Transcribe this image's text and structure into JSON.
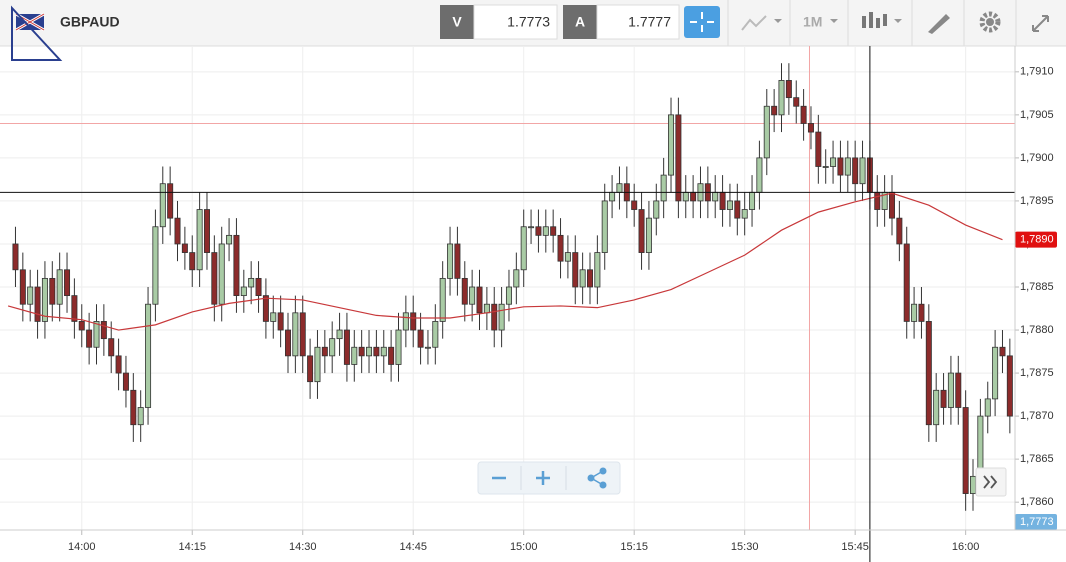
{
  "header": {
    "symbol": "GBPAUD",
    "bid_label": "V",
    "bid": "1.7773",
    "ask_label": "A",
    "ask": "1.7777",
    "timeframe": "1M"
  },
  "chart_data": {
    "type": "candlestick",
    "x": [
      -9,
      -8,
      -7,
      -6,
      -5,
      -4,
      -3,
      -2,
      -1,
      0,
      1,
      2,
      3,
      4,
      5,
      6,
      7,
      8,
      9,
      10,
      11,
      12,
      13,
      14,
      15,
      16,
      17,
      18,
      19,
      20,
      21,
      22,
      23,
      24,
      25,
      26,
      27,
      28,
      29,
      30,
      31,
      32,
      33,
      34,
      35,
      36,
      37,
      38,
      39,
      40,
      41,
      42,
      43,
      44,
      45,
      46,
      47,
      48,
      49,
      50,
      51,
      52,
      53,
      54,
      55,
      56,
      57,
      58,
      59,
      60,
      61,
      62,
      63,
      64,
      65,
      66,
      67,
      68,
      69,
      70,
      71,
      72,
      73,
      74,
      75,
      76,
      77,
      78,
      79,
      80,
      81,
      82,
      83,
      84,
      85,
      86,
      87,
      88,
      89,
      90,
      91,
      92,
      93,
      94,
      95,
      96,
      97,
      98,
      99,
      100,
      101,
      102,
      103,
      104,
      105,
      106,
      107,
      108,
      109,
      110,
      111,
      112,
      113,
      114,
      115,
      116,
      117,
      118,
      119,
      120,
      121,
      122,
      123,
      124,
      125,
      126
    ],
    "open": [
      1.789,
      1.7887,
      1.7883,
      1.7885,
      1.7881,
      1.7886,
      1.7883,
      1.7887,
      1.7884,
      1.7881,
      1.788,
      1.7878,
      1.7881,
      1.7879,
      1.7877,
      1.7875,
      1.7873,
      1.7869,
      1.7871,
      1.7883,
      1.7892,
      1.7897,
      1.7893,
      1.789,
      1.7889,
      1.7887,
      1.7894,
      1.7889,
      1.7883,
      1.789,
      1.7891,
      1.7884,
      1.7885,
      1.7886,
      1.7884,
      1.7881,
      1.7882,
      1.788,
      1.7877,
      1.7882,
      1.7877,
      1.7874,
      1.7878,
      1.7877,
      1.7879,
      1.788,
      1.7876,
      1.7878,
      1.7877,
      1.7878,
      1.7877,
      1.7878,
      1.7876,
      1.788,
      1.7882,
      1.788,
      1.7878,
      1.7878,
      1.7881,
      1.7886,
      1.789,
      1.7886,
      1.7883,
      1.7885,
      1.7882,
      1.7883,
      1.788,
      1.7883,
      1.7885,
      1.7887,
      1.7892,
      1.7892,
      1.7891,
      1.7892,
      1.7891,
      1.7888,
      1.7889,
      1.7885,
      1.7887,
      1.7885,
      1.7889,
      1.7895,
      1.7896,
      1.7897,
      1.7895,
      1.7894,
      1.7889,
      1.7893,
      1.7895,
      1.7898,
      1.7905,
      1.7895,
      1.7896,
      1.7895,
      1.7897,
      1.7895,
      1.7896,
      1.7894,
      1.7895,
      1.7893,
      1.7894,
      1.7896,
      1.79,
      1.7906,
      1.7905,
      1.7909,
      1.7907,
      1.7906,
      1.7904,
      1.7903,
      1.7899,
      1.7899,
      1.79,
      1.7898,
      1.79,
      1.7897,
      1.79,
      1.7896,
      1.7894,
      1.7896,
      1.7893,
      1.789,
      1.7881,
      1.7883,
      1.7881,
      1.7869,
      1.7873,
      1.7871,
      1.7875,
      1.7871,
      1.7861,
      1.7863,
      1.787,
      1.7872,
      1.7878,
      1.7877
    ],
    "high": [
      1.7892,
      1.7889,
      1.7887,
      1.7887,
      1.7888,
      1.7888,
      1.7889,
      1.7889,
      1.7886,
      1.7883,
      1.7882,
      1.7883,
      1.7883,
      1.7881,
      1.7879,
      1.7877,
      1.7875,
      1.7873,
      1.7885,
      1.7894,
      1.7899,
      1.7899,
      1.7895,
      1.7892,
      1.7891,
      1.7896,
      1.7896,
      1.7891,
      1.7892,
      1.7893,
      1.7893,
      1.7887,
      1.7888,
      1.7888,
      1.7886,
      1.7884,
      1.7884,
      1.7882,
      1.7884,
      1.7884,
      1.7879,
      1.788,
      1.788,
      1.7881,
      1.7882,
      1.7882,
      1.788,
      1.788,
      1.788,
      1.788,
      1.788,
      1.788,
      1.7882,
      1.7884,
      1.7884,
      1.7882,
      1.788,
      1.7883,
      1.7888,
      1.7892,
      1.7892,
      1.7888,
      1.7887,
      1.7887,
      1.7885,
      1.7885,
      1.7885,
      1.7887,
      1.7889,
      1.7894,
      1.7894,
      1.7894,
      1.7894,
      1.7894,
      1.7893,
      1.7891,
      1.7891,
      1.7889,
      1.7889,
      1.7891,
      1.7897,
      1.7898,
      1.7899,
      1.7899,
      1.7897,
      1.7896,
      1.7895,
      1.7897,
      1.79,
      1.7907,
      1.7907,
      1.7898,
      1.7898,
      1.7899,
      1.7899,
      1.7898,
      1.7898,
      1.7897,
      1.7897,
      1.7896,
      1.7898,
      1.7902,
      1.7908,
      1.7908,
      1.7911,
      1.7911,
      1.7909,
      1.7908,
      1.7906,
      1.7905,
      1.7901,
      1.7902,
      1.7902,
      1.7902,
      1.7902,
      1.7902,
      1.7902,
      1.7898,
      1.7898,
      1.7898,
      1.7895,
      1.7892,
      1.7885,
      1.7885,
      1.7883,
      1.7875,
      1.7875,
      1.7877,
      1.7877,
      1.7873,
      1.7865,
      1.7872,
      1.7874,
      1.788,
      1.788,
      1.7879
    ],
    "low": [
      1.7885,
      1.7881,
      1.7881,
      1.7879,
      1.7879,
      1.7881,
      1.7881,
      1.7882,
      1.7879,
      1.7878,
      1.7876,
      1.7876,
      1.7877,
      1.7875,
      1.7873,
      1.7871,
      1.7867,
      1.7867,
      1.7869,
      1.7881,
      1.789,
      1.7891,
      1.7888,
      1.7887,
      1.7885,
      1.7885,
      1.7887,
      1.7881,
      1.7881,
      1.7888,
      1.7882,
      1.7882,
      1.7883,
      1.7882,
      1.7879,
      1.7879,
      1.7878,
      1.7875,
      1.7875,
      1.7875,
      1.7872,
      1.7872,
      1.7875,
      1.7875,
      1.7877,
      1.7874,
      1.7874,
      1.7875,
      1.7875,
      1.7875,
      1.7875,
      1.7874,
      1.7874,
      1.7878,
      1.7878,
      1.7876,
      1.7876,
      1.7876,
      1.7879,
      1.7884,
      1.7884,
      1.7881,
      1.7881,
      1.788,
      1.788,
      1.7878,
      1.7878,
      1.7881,
      1.7883,
      1.7885,
      1.789,
      1.7889,
      1.7889,
      1.7889,
      1.7886,
      1.7886,
      1.7883,
      1.7883,
      1.7883,
      1.7883,
      1.7887,
      1.7893,
      1.7894,
      1.7893,
      1.7892,
      1.7887,
      1.7887,
      1.7891,
      1.7893,
      1.7896,
      1.7893,
      1.7893,
      1.7893,
      1.7893,
      1.7893,
      1.7893,
      1.7892,
      1.7892,
      1.7891,
      1.7891,
      1.7892,
      1.7894,
      1.7898,
      1.7903,
      1.7903,
      1.7905,
      1.7904,
      1.7902,
      1.7901,
      1.7897,
      1.7897,
      1.7897,
      1.7896,
      1.7896,
      1.7895,
      1.7895,
      1.7894,
      1.7892,
      1.7892,
      1.7891,
      1.7888,
      1.7879,
      1.7879,
      1.7879,
      1.7867,
      1.7867,
      1.7869,
      1.7869,
      1.7869,
      1.7859,
      1.7859,
      1.7861,
      1.7868,
      1.787,
      1.7875,
      1.7868
    ],
    "close": [
      1.7887,
      1.7883,
      1.7885,
      1.7881,
      1.7886,
      1.7883,
      1.7887,
      1.7884,
      1.7881,
      1.788,
      1.7878,
      1.7881,
      1.7879,
      1.7877,
      1.7875,
      1.7873,
      1.7869,
      1.7871,
      1.7883,
      1.7892,
      1.7897,
      1.7893,
      1.789,
      1.7889,
      1.7887,
      1.7894,
      1.7889,
      1.7883,
      1.789,
      1.7891,
      1.7884,
      1.7885,
      1.7886,
      1.7884,
      1.7881,
      1.7882,
      1.788,
      1.7877,
      1.7882,
      1.7877,
      1.7874,
      1.7878,
      1.7877,
      1.7879,
      1.788,
      1.7876,
      1.7878,
      1.7877,
      1.7878,
      1.7877,
      1.7878,
      1.7876,
      1.788,
      1.7882,
      1.788,
      1.7878,
      1.7878,
      1.7881,
      1.7886,
      1.789,
      1.7886,
      1.7883,
      1.7885,
      1.7882,
      1.7883,
      1.788,
      1.7883,
      1.7885,
      1.7887,
      1.7892,
      1.7892,
      1.7891,
      1.7892,
      1.7891,
      1.7888,
      1.7889,
      1.7885,
      1.7887,
      1.7885,
      1.7889,
      1.7895,
      1.7896,
      1.7897,
      1.7895,
      1.7894,
      1.7889,
      1.7893,
      1.7895,
      1.7898,
      1.7905,
      1.7895,
      1.7896,
      1.7895,
      1.7897,
      1.7895,
      1.7896,
      1.7894,
      1.7895,
      1.7893,
      1.7894,
      1.7896,
      1.79,
      1.7906,
      1.7905,
      1.7909,
      1.7907,
      1.7906,
      1.7904,
      1.7903,
      1.7899,
      1.7899,
      1.79,
      1.7898,
      1.79,
      1.7897,
      1.79,
      1.7896,
      1.7894,
      1.7896,
      1.7893,
      1.789,
      1.7881,
      1.7883,
      1.7881,
      1.7869,
      1.7873,
      1.7871,
      1.7875,
      1.7871,
      1.7861,
      1.7863,
      1.787,
      1.7872,
      1.7878,
      1.7877,
      1.787
    ],
    "up_color": "#a9cba5",
    "down_color": "#8c2b2b",
    "ma": {
      "x": [
        -10,
        -5,
        0,
        5,
        10,
        15,
        20,
        25,
        30,
        35,
        40,
        45,
        50,
        55,
        60,
        65,
        70,
        75,
        80,
        85,
        90,
        95,
        100,
        105,
        110,
        115,
        120,
        125
      ],
      "values": [
        1.78828,
        1.78816,
        1.78812,
        1.788,
        1.78806,
        1.78821,
        1.78831,
        1.78837,
        1.78835,
        1.78826,
        1.78817,
        1.78814,
        1.78814,
        1.7882,
        1.78827,
        1.78828,
        1.78826,
        1.78835,
        1.78847,
        1.78867,
        1.78887,
        1.78916,
        1.78937,
        1.78949,
        1.78959,
        1.78945,
        1.78922,
        1.78905
      ],
      "color": "#c8383a"
    },
    "xlim": [
      -11.1,
      126.7
    ],
    "ylim": [
      1.7857,
      1.7913
    ],
    "xticks": [
      {
        "value": 0,
        "label": "14:00"
      },
      {
        "value": 15,
        "label": "14:15"
      },
      {
        "value": 30,
        "label": "14:30"
      },
      {
        "value": 45,
        "label": "14:45"
      },
      {
        "value": 60,
        "label": "15:00"
      },
      {
        "value": 75,
        "label": "15:15"
      },
      {
        "value": 90,
        "label": "15:30"
      },
      {
        "value": 105,
        "label": "15:45"
      },
      {
        "value": 120,
        "label": "16:00"
      }
    ],
    "yticks": [
      {
        "value": 1.786,
        "label": "1,7860"
      },
      {
        "value": 1.7865,
        "label": "1,7865"
      },
      {
        "value": 1.787,
        "label": "1,7870"
      },
      {
        "value": 1.7875,
        "label": "1,7875"
      },
      {
        "value": 1.788,
        "label": "1,7880"
      },
      {
        "value": 1.7885,
        "label": "1,7885"
      },
      {
        "value": 1.789,
        "label": "1,7890"
      },
      {
        "value": 1.7895,
        "label": "1,7895"
      },
      {
        "value": 1.79,
        "label": "1,7900"
      },
      {
        "value": 1.7905,
        "label": "1,7905"
      },
      {
        "value": 1.791,
        "label": "1,7910"
      }
    ],
    "grid": true,
    "crosshair": {
      "x": 107,
      "y": 1.7896
    },
    "marker_line": {
      "x": 98.8,
      "y": 1.7904,
      "color": "#f2a6a6"
    },
    "price_labels": [
      {
        "label": "1,7890",
        "color": "#e01010"
      },
      {
        "label": "1,7773",
        "color": "#74b3e0"
      }
    ]
  }
}
